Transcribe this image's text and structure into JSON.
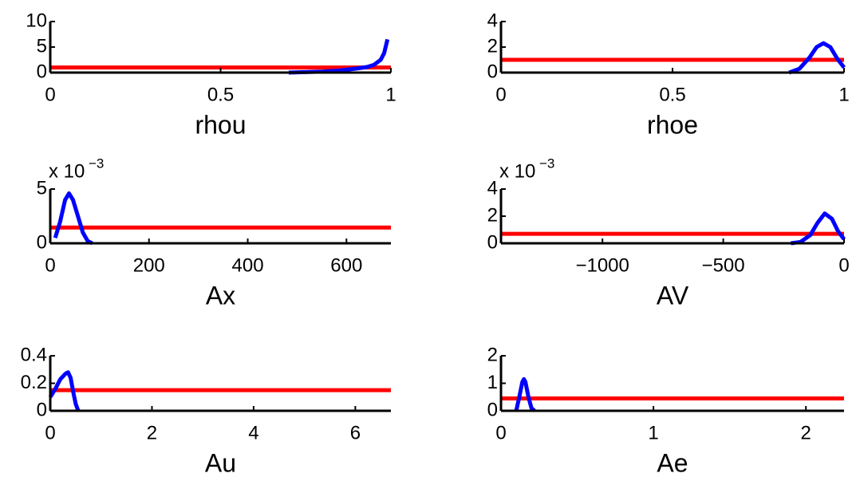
{
  "chart_data": [
    {
      "type": "line",
      "xlabel": "rhou",
      "xlim": [
        0,
        1
      ],
      "xticks": [
        0,
        0.5,
        1
      ],
      "ylim": [
        0,
        10
      ],
      "yticks": [
        0,
        5,
        10
      ],
      "series": [
        {
          "color": "#ff0000",
          "x": [
            0,
            1
          ],
          "values": [
            1,
            1
          ]
        },
        {
          "color": "#0000ff",
          "x": [
            0.7,
            0.75,
            0.8,
            0.85,
            0.9,
            0.93,
            0.95,
            0.97,
            0.98,
            0.99
          ],
          "values": [
            0,
            0.1,
            0.2,
            0.4,
            0.8,
            1.1,
            1.5,
            2.5,
            3.8,
            6.5
          ]
        }
      ]
    },
    {
      "type": "line",
      "xlabel": "rhoe",
      "xlim": [
        0,
        1
      ],
      "xticks": [
        0,
        0.5,
        1
      ],
      "ylim": [
        0,
        4
      ],
      "yticks": [
        0,
        2,
        4
      ],
      "series": [
        {
          "color": "#ff0000",
          "x": [
            0,
            1
          ],
          "values": [
            1,
            1
          ]
        },
        {
          "color": "#0000ff",
          "x": [
            0.84,
            0.87,
            0.9,
            0.92,
            0.94,
            0.96,
            0.98,
            1
          ],
          "values": [
            0,
            0.3,
            1.2,
            2,
            2.3,
            2,
            1.1,
            0.4
          ]
        }
      ]
    },
    {
      "type": "line",
      "xlabel": "Ax",
      "y_multiplier": "x 10",
      "y_exponent": "−3",
      "xlim": [
        0,
        690
      ],
      "xticks": [
        0,
        200,
        400,
        600
      ],
      "ylim": [
        0,
        5
      ],
      "yticks": [
        0,
        5
      ],
      "series": [
        {
          "color": "#ff0000",
          "x": [
            0,
            690
          ],
          "values": [
            1.45,
            1.45
          ]
        },
        {
          "color": "#0000ff",
          "x": [
            10,
            20,
            30,
            38,
            46,
            56,
            66,
            76,
            85
          ],
          "values": [
            0.5,
            2,
            4,
            4.6,
            4,
            2.5,
            1,
            0.2,
            0
          ]
        }
      ]
    },
    {
      "type": "line",
      "xlabel": "AV",
      "y_multiplier": "x 10",
      "y_exponent": "−3",
      "xlim": [
        -1420,
        0
      ],
      "xticks": [
        {
          "value": -1000,
          "label": "−1000"
        },
        {
          "value": -500,
          "label": "−500"
        },
        0
      ],
      "ylim": [
        0,
        4
      ],
      "yticks": [
        0,
        2,
        4
      ],
      "series": [
        {
          "color": "#ff0000",
          "x": [
            -1420,
            0
          ],
          "values": [
            0.7,
            0.7
          ]
        },
        {
          "color": "#0000ff",
          "x": [
            -220,
            -180,
            -140,
            -110,
            -80,
            -50,
            -25,
            0
          ],
          "values": [
            0,
            0.1,
            0.6,
            1.5,
            2.2,
            1.8,
            0.9,
            0.3
          ]
        }
      ]
    },
    {
      "type": "line",
      "xlabel": "Au",
      "xlim": [
        0,
        6.7
      ],
      "xticks": [
        0,
        2,
        4,
        6
      ],
      "ylim": [
        0,
        0.4
      ],
      "yticks": [
        0,
        0.2,
        0.4
      ],
      "series": [
        {
          "color": "#ff0000",
          "x": [
            0,
            6.7
          ],
          "values": [
            0.15,
            0.15
          ]
        },
        {
          "color": "#0000ff",
          "x": [
            0,
            0.1,
            0.2,
            0.3,
            0.35,
            0.4,
            0.45,
            0.5,
            0.55
          ],
          "values": [
            0.1,
            0.16,
            0.23,
            0.27,
            0.28,
            0.24,
            0.14,
            0.05,
            0
          ]
        }
      ]
    },
    {
      "type": "line",
      "xlabel": "Ae",
      "xlim": [
        0,
        2.25
      ],
      "xticks": [
        0,
        1,
        2
      ],
      "ylim": [
        0,
        2
      ],
      "yticks": [
        0,
        1,
        2
      ],
      "series": [
        {
          "color": "#ff0000",
          "x": [
            0,
            2.25
          ],
          "values": [
            0.45,
            0.45
          ]
        },
        {
          "color": "#0000ff",
          "x": [
            0.1,
            0.12,
            0.14,
            0.15,
            0.16,
            0.18,
            0.2,
            0.22
          ],
          "values": [
            0,
            0.5,
            1.05,
            1.15,
            1.05,
            0.5,
            0.1,
            0
          ]
        }
      ]
    }
  ]
}
